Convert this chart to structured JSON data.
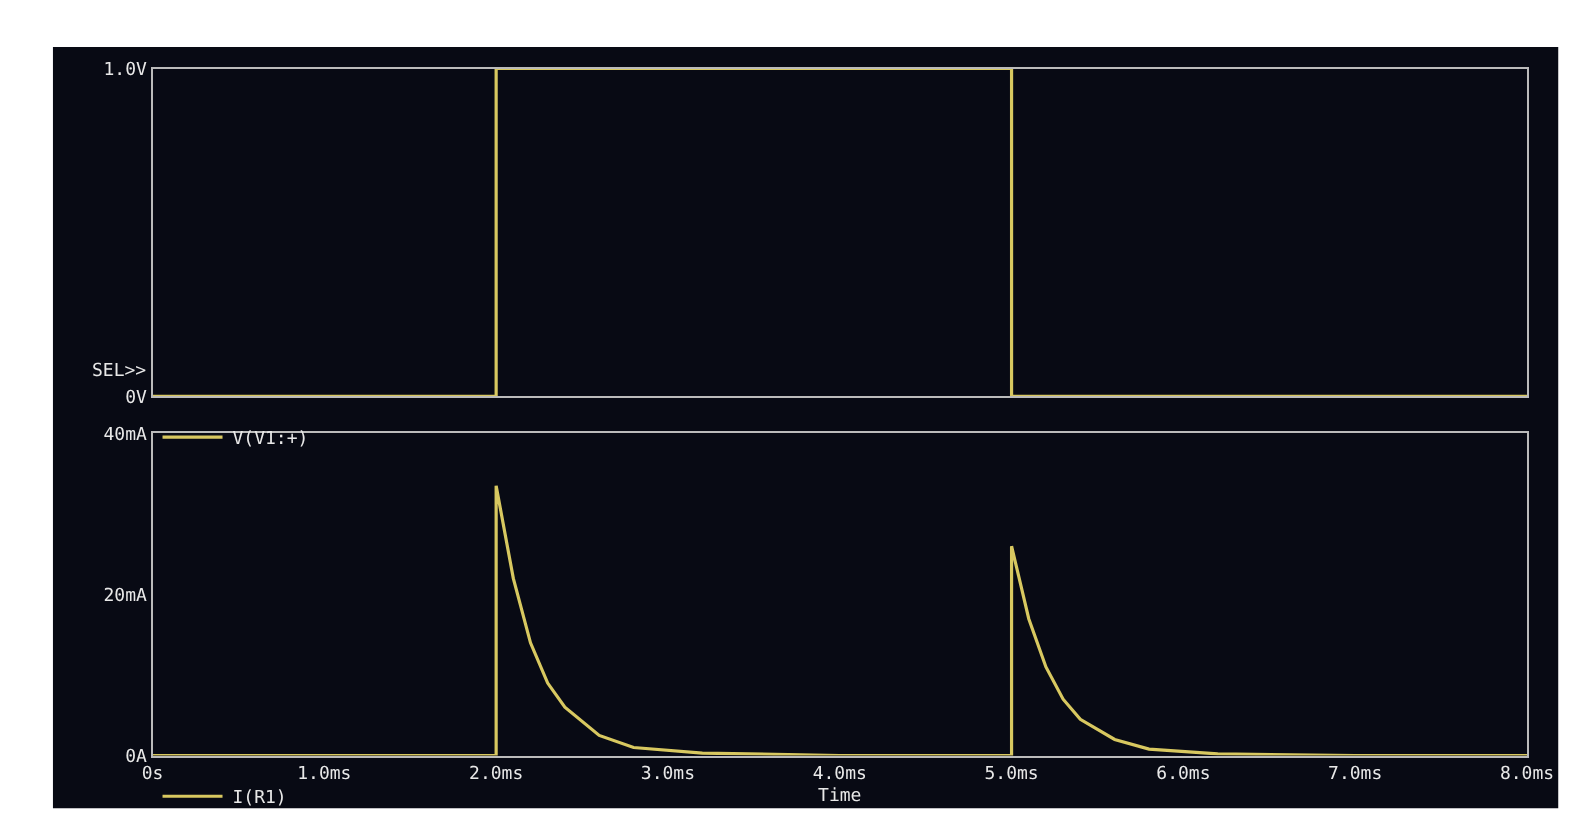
{
  "chart_data": [
    {
      "type": "line",
      "x": [
        0,
        2.0,
        2.0,
        5.0,
        5.0,
        8.0
      ],
      "series": [
        {
          "name": "V(V1:+)",
          "color": "#d8c860",
          "values": [
            0,
            0,
            1.0,
            1.0,
            0,
            0
          ]
        }
      ],
      "xlim": [
        0,
        8.0
      ],
      "ylim": [
        0,
        1.0
      ],
      "yticks": [
        {
          "value": 0,
          "label": "0V"
        },
        {
          "value": 1.0,
          "label": "1.0V"
        }
      ],
      "tick_labels": "y",
      "legend": "bottom left",
      "annotations": [
        "SEL>>"
      ]
    },
    {
      "type": "line",
      "x": [
        0,
        2.0,
        2.0,
        2.1,
        2.2,
        2.3,
        2.4,
        2.6,
        2.8,
        3.2,
        4.0,
        5.0,
        5.0,
        5.1,
        5.2,
        5.3,
        5.4,
        5.6,
        5.8,
        6.2,
        7.0,
        8.0
      ],
      "series": [
        {
          "name": "I(R1)",
          "color": "#d8c860",
          "values": [
            0,
            0,
            33.5,
            22,
            14,
            9,
            6,
            2.5,
            1,
            0.3,
            0,
            0,
            26,
            17,
            11,
            7,
            4.5,
            2,
            0.8,
            0.2,
            0,
            0
          ]
        }
      ],
      "xlim": [
        0,
        8.0
      ],
      "ylim": [
        0,
        40
      ],
      "xticks": [
        {
          "value": 0,
          "label": "0s"
        },
        {
          "value": 1.0,
          "label": "1.0ms"
        },
        {
          "value": 2.0,
          "label": "2.0ms"
        },
        {
          "value": 3.0,
          "label": "3.0ms"
        },
        {
          "value": 4.0,
          "label": "4.0ms"
        },
        {
          "value": 5.0,
          "label": "5.0ms"
        },
        {
          "value": 6.0,
          "label": "6.0ms"
        },
        {
          "value": 7.0,
          "label": "7.0ms"
        },
        {
          "value": 8.0,
          "label": "8.0ms"
        }
      ],
      "yticks": [
        {
          "value": 0,
          "label": "0A"
        },
        {
          "value": 20,
          "label": "20mA"
        },
        {
          "value": 40,
          "label": "40mA"
        }
      ],
      "xlabel": "Time",
      "legend": "bottom left"
    }
  ]
}
